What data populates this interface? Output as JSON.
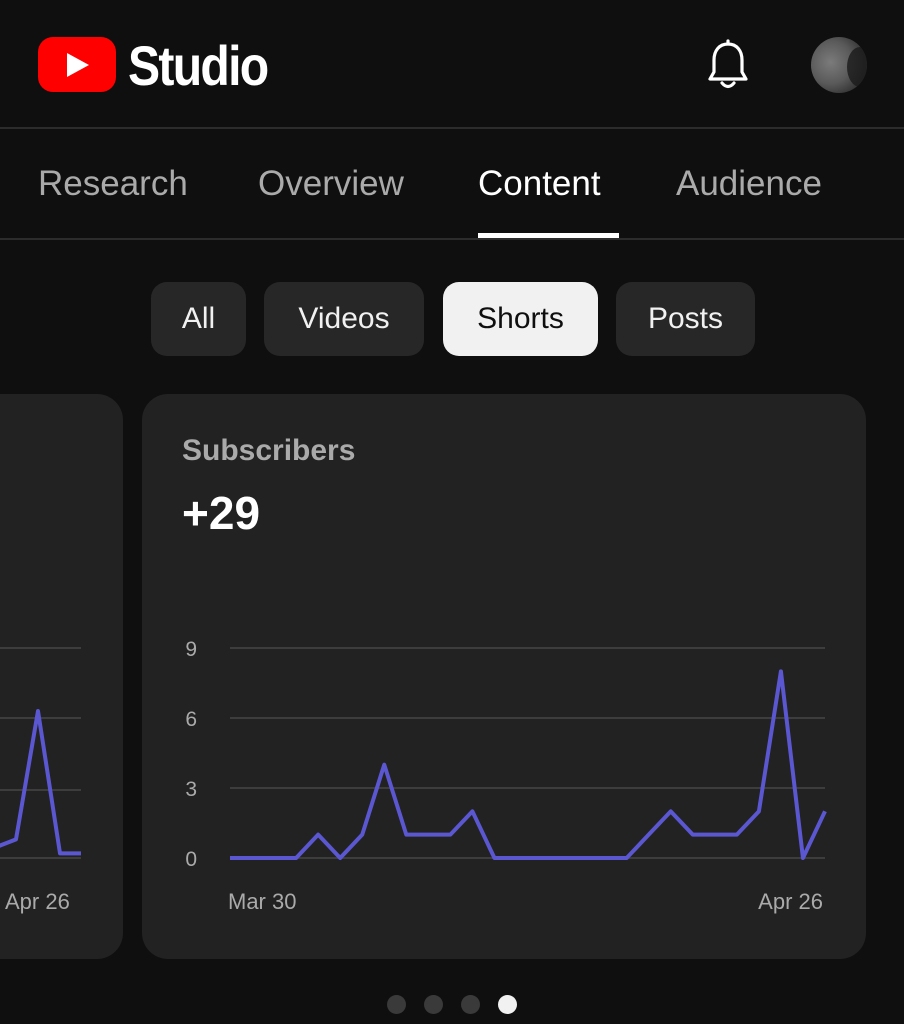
{
  "header": {
    "brand": "Studio",
    "icons": {
      "logo": "youtube-play-icon",
      "bell": "bell-icon",
      "avatar": "avatar"
    }
  },
  "tabs": [
    {
      "label": "Research",
      "active": false
    },
    {
      "label": "Overview",
      "active": false
    },
    {
      "label": "Content",
      "active": true
    },
    {
      "label": "Audience",
      "active": false
    }
  ],
  "chips": [
    {
      "label": "All",
      "selected": false
    },
    {
      "label": "Videos",
      "selected": false
    },
    {
      "label": "Shorts",
      "selected": true
    },
    {
      "label": "Posts",
      "selected": false
    }
  ],
  "left_card": {
    "x_label_end": "Apr 26"
  },
  "card": {
    "title": "Subscribers",
    "value": "+29"
  },
  "chart_data": {
    "type": "line",
    "title": "",
    "xlabel": "",
    "ylabel": "",
    "x_tick_labels": [
      "Mar 30",
      "Apr 26"
    ],
    "y_ticks": [
      "0",
      "3",
      "6",
      "9"
    ],
    "ylim": [
      0,
      9
    ],
    "grid": true,
    "series": [
      {
        "color": "#5b57d1",
        "values": [
          0,
          0,
          0,
          0,
          1,
          0,
          1,
          4,
          1,
          1,
          1,
          2,
          0,
          0,
          0,
          0,
          0,
          0,
          0,
          1,
          2,
          1,
          1,
          1,
          2,
          8,
          0,
          2
        ]
      }
    ]
  },
  "left_chart_data": {
    "type": "line",
    "x_tick_labels": [
      "Apr 26"
    ],
    "series": [
      {
        "color": "#5b57d1",
        "values_tail": [
          0.5,
          0.8,
          6.3,
          0.2,
          0.2
        ]
      }
    ]
  },
  "pagination": {
    "count": 4,
    "active_index": 3
  },
  "colors": {
    "accent": "#5b57d1",
    "brand_red": "#ff0000"
  }
}
